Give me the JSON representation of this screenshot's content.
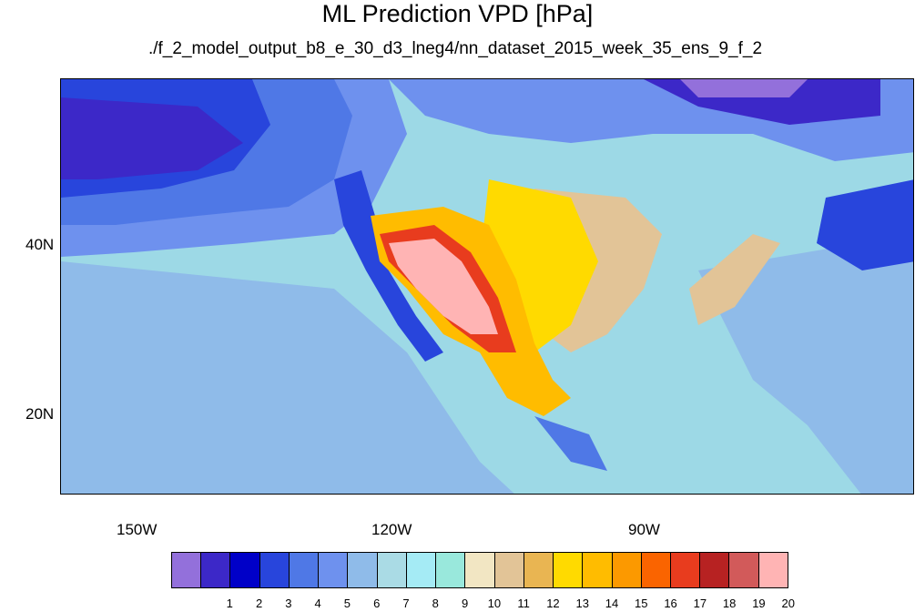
{
  "title": "ML Prediction VPD [hPa]",
  "subtitle": "./f_2_model_output_b8_e_30_d3_lneg4/nn_dataset_2015_week_35_ens_9_f_2",
  "axes": {
    "lat_labels": [
      "40N",
      "20N"
    ],
    "lon_labels": [
      "150W",
      "120W",
      "90W"
    ]
  },
  "colorbar": {
    "colors": [
      "#9370db",
      "#3c28c8",
      "#0000c8",
      "#2845dc",
      "#4f78e6",
      "#6e91ee",
      "#8fbbe9",
      "#aadbe5",
      "#a5ebf5",
      "#99e8dc",
      "#f2e6c3",
      "#e2c497",
      "#e9b552",
      "#ffda00",
      "#ffbc00",
      "#fc9900",
      "#fa6400",
      "#e83c1e",
      "#b72222",
      "#d25a5a",
      "#ffb4b4"
    ],
    "labels": [
      "1",
      "2",
      "3",
      "4",
      "5",
      "6",
      "7",
      "8",
      "9",
      "10",
      "11",
      "12",
      "13",
      "14",
      "15",
      "16",
      "17",
      "18",
      "19",
      "20"
    ]
  }
}
